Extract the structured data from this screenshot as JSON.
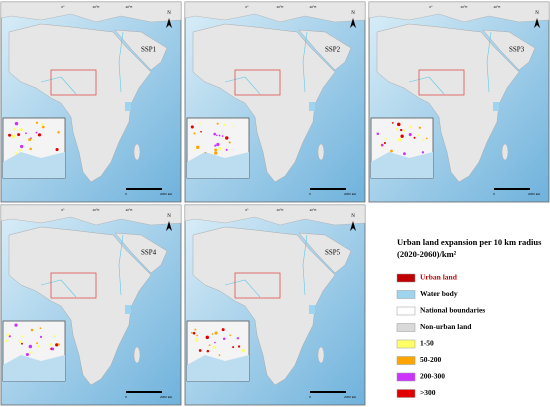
{
  "panels": [
    {
      "label": "SSP1"
    },
    {
      "label": "SSP2"
    },
    {
      "label": "SSP3"
    },
    {
      "label": "SSP4"
    },
    {
      "label": "SSP5"
    }
  ],
  "map_labels": {
    "north": "N",
    "lon_ticks": [
      "0°",
      "20°E",
      "40°E"
    ],
    "scale_start": "0",
    "scale_end": "2000 km"
  },
  "legend": {
    "title": "Urban land expansion per 10 km radius (2020-2060)/km²",
    "items": [
      {
        "label": "Urban land",
        "color": "#c00000",
        "text_color": "#c00000"
      },
      {
        "label": "Water body",
        "color": "#9fd4f0",
        "text_color": "#000000"
      },
      {
        "label": "National boundaries",
        "color": "#ffffff",
        "text_color": "#000000"
      },
      {
        "label": "Non-urban land",
        "color": "#d9d9d9",
        "text_color": "#000000"
      },
      {
        "label": "1-50",
        "color": "#ffff66",
        "text_color": "#000000"
      },
      {
        "label": "50-200",
        "color": "#ffa500",
        "text_color": "#000000"
      },
      {
        "label": "200-300",
        "color": "#cc33ff",
        "text_color": "#000000"
      },
      {
        "label": ">300",
        "color": "#e00000",
        "text_color": "#000000"
      }
    ]
  }
}
